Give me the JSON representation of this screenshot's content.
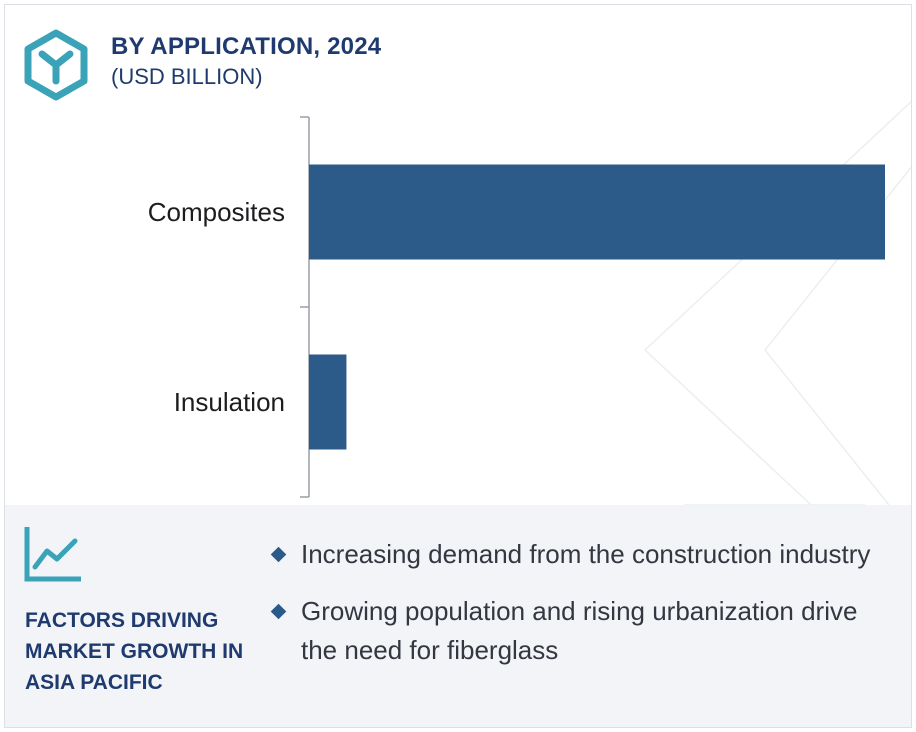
{
  "header": {
    "title": "BY APPLICATION, 2024",
    "subtitle": "(USD BILLION)",
    "logo_icon": "cube-y-logo-icon"
  },
  "colors": {
    "bar": "#2c5a89",
    "heading": "#1f3a6e",
    "accent": "#3aa3b8",
    "panel": "#f3f4f8"
  },
  "chart_data": {
    "type": "bar",
    "orientation": "horizontal",
    "categories": [
      "Composites",
      "Insulation"
    ],
    "values": [
      10,
      0.65
    ],
    "title": "BY APPLICATION, 2024",
    "xlabel": "",
    "ylabel": "",
    "xlim": [
      0,
      10
    ],
    "grid": false,
    "legend": "none"
  },
  "factors": {
    "icon": "trend-line-chart-icon",
    "heading": "FACTORS DRIVING\nMARKET GROWTH IN\nASIA PACIFIC",
    "bullets": [
      "Increasing demand from the construction industry",
      "Growing population and rising urbanization drive the need for fiberglass"
    ]
  }
}
